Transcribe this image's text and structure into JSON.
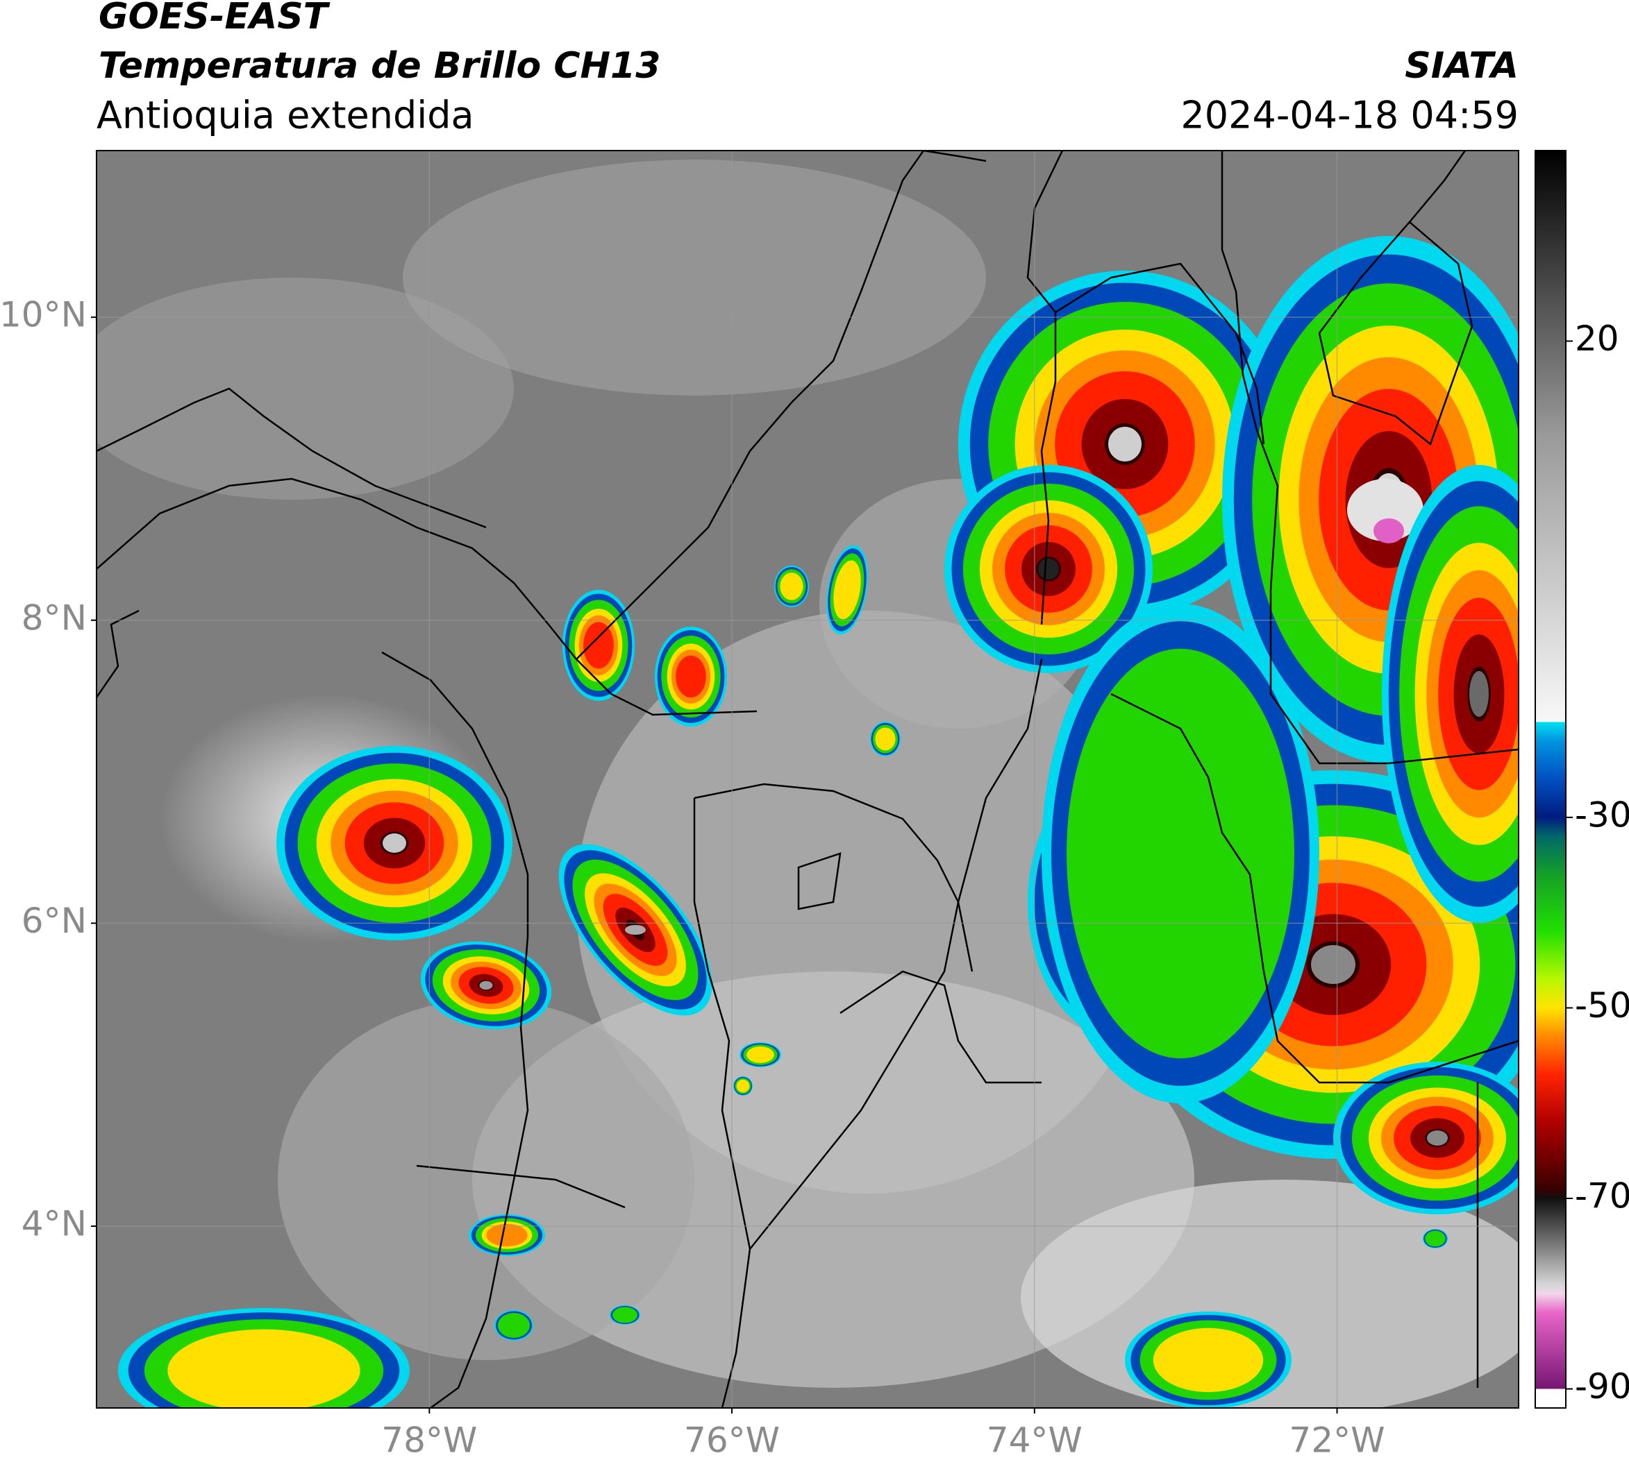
{
  "header": {
    "title": "GOES-EAST",
    "subtitle": "Temperatura de Brillo CH13",
    "region": "Antioquia extendida",
    "source": "SIATA",
    "timestamp": "2024-04-18 04:59"
  },
  "map": {
    "xlim": [
      -80.2,
      -70.8
    ],
    "ylim": [
      2.8,
      11.1
    ],
    "xticks": [
      {
        "value": -78,
        "label": "78°W"
      },
      {
        "value": -76,
        "label": "76°W"
      },
      {
        "value": -74,
        "label": "74°W"
      },
      {
        "value": -72,
        "label": "72°W"
      }
    ],
    "yticks": [
      {
        "value": 4,
        "label": "4°N"
      },
      {
        "value": 6,
        "label": "6°N"
      },
      {
        "value": 8,
        "label": "8°N"
      },
      {
        "value": 10,
        "label": "10°N"
      }
    ],
    "grid": true
  },
  "colorbar": {
    "lim": [
      -92,
      40
    ],
    "ticks": [
      -90,
      -70,
      -50,
      -30,
      20
    ],
    "stops": [
      {
        "value": -92,
        "color": "#ffffff"
      },
      {
        "value": -90,
        "color": "#ffffff"
      },
      {
        "value": -90,
        "color": "#761575"
      },
      {
        "value": -82,
        "color": "#e866c8"
      },
      {
        "value": -80,
        "color": "#f2d6ea"
      },
      {
        "value": -79,
        "color": "#d4d4d4"
      },
      {
        "value": -70,
        "color": "#101010"
      },
      {
        "value": -69,
        "color": "#3a0000"
      },
      {
        "value": -62,
        "color": "#b00000"
      },
      {
        "value": -57,
        "color": "#ff2400"
      },
      {
        "value": -53,
        "color": "#ff8a00"
      },
      {
        "value": -50,
        "color": "#ffe400"
      },
      {
        "value": -47,
        "color": "#b8f800"
      },
      {
        "value": -42,
        "color": "#22e000"
      },
      {
        "value": -36,
        "color": "#14a028"
      },
      {
        "value": -32,
        "color": "#006868"
      },
      {
        "value": -30,
        "color": "#001c80"
      },
      {
        "value": -26,
        "color": "#0050c0"
      },
      {
        "value": -22,
        "color": "#0094e0"
      },
      {
        "value": -20,
        "color": "#00e0f0"
      },
      {
        "value": -20,
        "color": "#f8f8f8"
      },
      {
        "value": 10,
        "color": "#9a9a9a"
      },
      {
        "value": 40,
        "color": "#000000"
      }
    ]
  }
}
